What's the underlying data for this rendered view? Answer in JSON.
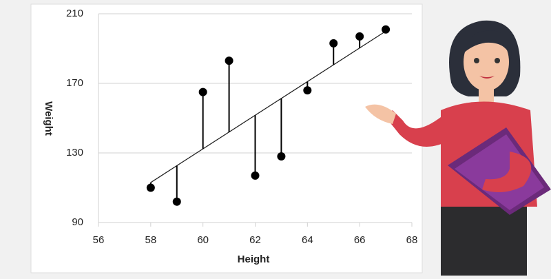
{
  "chart_data": {
    "type": "scatter",
    "x_label": "Height",
    "y_label": "Weight",
    "x": [
      58,
      59,
      60,
      61,
      62,
      63,
      64,
      65,
      66,
      67
    ],
    "values": [
      110,
      102,
      165,
      183,
      117,
      128,
      166,
      193,
      197,
      201
    ],
    "color": "#000000",
    "trend": {
      "x": [
        58,
        67
      ],
      "y": [
        113,
        200
      ]
    },
    "xlim": [
      56,
      68
    ],
    "xticks": [
      56,
      58,
      60,
      62,
      64,
      66,
      68
    ],
    "ylim": [
      90,
      210
    ],
    "yticks": [
      90,
      130,
      170,
      210
    ],
    "grid": true
  }
}
